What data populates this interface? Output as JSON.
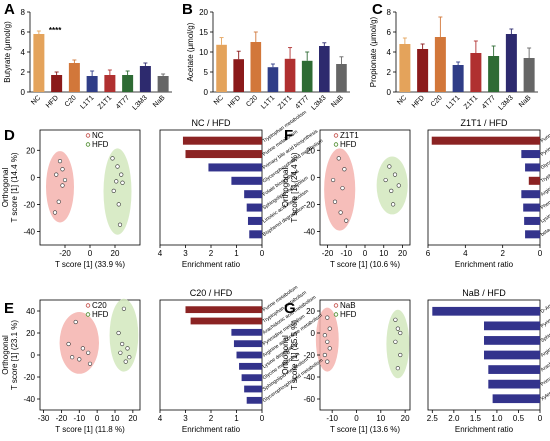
{
  "groups": [
    "NC",
    "HFD",
    "C20",
    "L1T1",
    "Z1T1",
    "4T77",
    "L3M3",
    "NaB"
  ],
  "colors": {
    "NC": "#e4a35b",
    "HFD": "#8b1a1a",
    "C20": "#d2773a",
    "L1T1": "#2f3d87",
    "Z1T1": "#b03030",
    "4T77": "#2e6b34",
    "L3M3": "#2d2a6e",
    "NaB": "#666666",
    "enrich_up": "#8b2323",
    "enrich_down": "#33338c",
    "pca_red": "#f4b3ae",
    "pca_green": "#d2e7bd"
  },
  "chart_data": [
    {
      "panel": "A",
      "type": "bar",
      "ylabel": "Butyrate (μmol/g)",
      "ylim": [
        0,
        8
      ],
      "yticks": [
        0,
        2,
        4,
        6,
        8
      ],
      "categories": [
        "NC",
        "HFD",
        "C20",
        "L1T1",
        "Z1T1",
        "4T77",
        "L3M3",
        "NaB"
      ],
      "values": [
        5.8,
        1.7,
        2.9,
        1.6,
        1.7,
        1.7,
        2.6,
        1.6
      ],
      "errors": [
        0.3,
        0.3,
        0.3,
        0.5,
        0.5,
        0.4,
        0.3,
        0.2
      ],
      "annotation": "****"
    },
    {
      "panel": "B",
      "type": "bar",
      "ylabel": "Acetate (μmol/g)",
      "ylim": [
        0,
        20
      ],
      "yticks": [
        0,
        5,
        10,
        15,
        20
      ],
      "categories": [
        "NC",
        "HFD",
        "C20",
        "L1T1",
        "Z1T1",
        "4T77",
        "L3M3",
        "NaB"
      ],
      "values": [
        11.8,
        8.2,
        12.5,
        6.2,
        8.3,
        7.8,
        11.5,
        7.0
      ],
      "errors": [
        1.8,
        2.0,
        2.5,
        0.8,
        2.8,
        2.2,
        0.8,
        1.8
      ]
    },
    {
      "panel": "C",
      "type": "bar",
      "ylabel": "Propionate (μmol/g)",
      "ylim": [
        0,
        8
      ],
      "yticks": [
        0,
        2,
        4,
        6,
        8
      ],
      "categories": [
        "NC",
        "HFD",
        "C20",
        "L1T1",
        "Z1T1",
        "4T77",
        "L3M3",
        "NaB"
      ],
      "values": [
        4.8,
        4.3,
        5.5,
        2.7,
        3.9,
        3.6,
        5.8,
        3.4
      ],
      "errors": [
        0.6,
        0.5,
        2.0,
        0.3,
        1.2,
        1.0,
        0.5,
        1.0
      ]
    },
    {
      "panel": "D",
      "type": "scatter",
      "legend": [
        "NC",
        "HFD"
      ],
      "xlabel": "T score [1] (33.9 %)",
      "ylabel": "Orthogonal\nT score [1] (14.4 %)",
      "xticks": [
        -20,
        0,
        20
      ],
      "yticks": [
        20,
        0,
        -20,
        -40
      ],
      "xlim": [
        -40,
        40
      ],
      "ylim": [
        -50,
        35
      ],
      "series": [
        {
          "name": "NC",
          "points": [
            [
              -24,
              12
            ],
            [
              -22,
              6
            ],
            [
              -27,
              2
            ],
            [
              -20,
              -2
            ],
            [
              -22,
              -6
            ],
            [
              -25,
              -18
            ],
            [
              -28,
              -26
            ]
          ]
        },
        {
          "name": "HFD",
          "points": [
            [
              18,
              14
            ],
            [
              22,
              8
            ],
            [
              25,
              2
            ],
            [
              21,
              -3
            ],
            [
              26,
              -4
            ],
            [
              19,
              -10
            ],
            [
              23,
              -20
            ],
            [
              24,
              -35
            ]
          ]
        }
      ]
    },
    {
      "panel": "D2",
      "type": "bar-horizontal",
      "title": "NC / HFD",
      "xlabel": "Enrichment ratio",
      "xticks": [
        "4",
        "3",
        "2",
        "1",
        "0"
      ],
      "xlim": [
        4,
        0
      ],
      "categories": [
        "Tryptophan metabolism",
        "Purine metabolism",
        "Primary bile acid biosynthesis",
        "Glycerophospholipid metabolism",
        "Folate biosynthesis",
        "Sphingolipid metabolism",
        "Linoleic acid metabolism",
        "Bisphenol degradation"
      ],
      "values": [
        3.1,
        3.0,
        2.1,
        1.2,
        0.7,
        0.6,
        0.55,
        0.5
      ],
      "direction": [
        "up",
        "up",
        "down",
        "down",
        "down",
        "down",
        "down",
        "down"
      ]
    },
    {
      "panel": "F",
      "type": "scatter",
      "legend": [
        "Z1T1",
        "HFD"
      ],
      "xlabel": "T score [1] (10.6 %)",
      "ylabel": "Orthogonal\nT score [1] (24.4 %)",
      "xticks": [
        -20,
        -10,
        0,
        10,
        20
      ],
      "yticks": [
        20,
        0,
        -20,
        -40
      ],
      "xlim": [
        -24,
        24
      ],
      "ylim": [
        -50,
        35
      ],
      "series": [
        {
          "name": "Z1T1",
          "points": [
            [
              -14,
              14
            ],
            [
              -11,
              6
            ],
            [
              -17,
              -2
            ],
            [
              -12,
              -8
            ],
            [
              -16,
              -18
            ],
            [
              -13,
              -26
            ],
            [
              -10,
              -32
            ]
          ]
        },
        {
          "name": "HFD",
          "points": [
            [
              13,
              8
            ],
            [
              16,
              2
            ],
            [
              11,
              -2
            ],
            [
              18,
              -6
            ],
            [
              14,
              -10
            ],
            [
              15,
              -20
            ]
          ]
        }
      ]
    },
    {
      "panel": "F2",
      "type": "bar-horizontal",
      "title": "Z1T1 / HFD",
      "xlabel": "Enrichment ratio",
      "xticks": [
        "6",
        "4",
        "2",
        "0"
      ],
      "xlim": [
        6,
        0
      ],
      "categories": [
        "Purine metabolism",
        "Pyrimidine metabolism",
        "Glycerophospholipid metabolism",
        "Tryptophan metabolism",
        "Arginine biosynthesis",
        "Phenylalanine metabolism",
        "Lysine degradation",
        "beta-Alanine metabolism"
      ],
      "values": [
        5.8,
        1.0,
        0.8,
        0.6,
        1.0,
        0.9,
        0.85,
        0.8
      ],
      "direction": [
        "up",
        "down",
        "down",
        "up",
        "down",
        "down",
        "down",
        "down"
      ]
    },
    {
      "panel": "E",
      "type": "scatter",
      "legend": [
        "C20",
        "HFD"
      ],
      "xlabel": "T score [1] (11.8 %)",
      "ylabel": "Orthogonal\nT score [1] (23.1 %)",
      "xticks": [
        -30,
        -20,
        -10,
        0,
        10,
        20
      ],
      "yticks": [
        40,
        20,
        0,
        -20,
        -40
      ],
      "xlim": [
        -32,
        24
      ],
      "ylim": [
        -50,
        50
      ],
      "series": [
        {
          "name": "C20",
          "points": [
            [
              -12,
              30
            ],
            [
              -16,
              10
            ],
            [
              -8,
              6
            ],
            [
              -5,
              2
            ],
            [
              -14,
              -2
            ],
            [
              -10,
              -4
            ],
            [
              -4,
              -8
            ]
          ]
        },
        {
          "name": "HFD",
          "points": [
            [
              15,
              42
            ],
            [
              12,
              20
            ],
            [
              14,
              10
            ],
            [
              17,
              6
            ],
            [
              13,
              2
            ],
            [
              18,
              -2
            ],
            [
              16,
              -6
            ]
          ]
        }
      ]
    },
    {
      "panel": "E2",
      "type": "bar-horizontal",
      "title": "C20 / HFD",
      "xlabel": "Enrichment ratio",
      "xticks": [
        "4",
        "3",
        "2",
        "1",
        "0"
      ],
      "xlim": [
        4,
        0
      ],
      "categories": [
        "Purine metabolism",
        "Tryptophan metabolism",
        "Arachidonic acid metabolism",
        "Pyrimidine metabolism",
        "Arginine and proline metabolism",
        "Lysine degradation",
        "Glycine metabolism",
        "Sphingolipid metabolism",
        "Glycerophospholipid metabolism"
      ],
      "values": [
        3.0,
        2.8,
        1.2,
        1.1,
        1.0,
        0.9,
        0.8,
        0.7,
        0.6
      ],
      "direction": [
        "up",
        "up",
        "down",
        "down",
        "down",
        "down",
        "down",
        "down",
        "down"
      ]
    },
    {
      "panel": "G",
      "type": "scatter",
      "legend": [
        "NaB",
        "HFD"
      ],
      "xlabel": "T score [1] (13.6 %)",
      "ylabel": "Orthogonal\nT score [1] (25.5 %)",
      "xticks": [
        -10,
        0,
        10,
        20
      ],
      "yticks": [
        20,
        0,
        -20,
        -40,
        -60
      ],
      "xlim": [
        -15,
        22
      ],
      "ylim": [
        -70,
        30
      ],
      "series": [
        {
          "name": "NaB",
          "points": [
            [
              -12,
              14
            ],
            [
              -11,
              4
            ],
            [
              -13,
              -2
            ],
            [
              -12,
              -8
            ],
            [
              -11,
              -14
            ],
            [
              -13,
              -20
            ],
            [
              -12,
              -26
            ]
          ]
        },
        {
          "name": "HFD",
          "points": [
            [
              16,
              12
            ],
            [
              17,
              4
            ],
            [
              18,
              0
            ],
            [
              16,
              -8
            ],
            [
              18,
              -20
            ],
            [
              17,
              -32
            ]
          ]
        }
      ]
    },
    {
      "panel": "G2",
      "type": "bar-horizontal",
      "title": "NaB / HFD",
      "xlabel": "Enrichment ratio",
      "xticks": [
        "2.5",
        "2.0",
        "1.5",
        "1.0",
        "0.5",
        "0"
      ],
      "xlim": [
        2.6,
        0
      ],
      "categories": [
        "D-Arginine and D-ornithine metabolism",
        "Pyrimidine metabolism",
        "Sphingolipid metabolism",
        "Arginine biosynthesis",
        "Arachidonic acid metabolism",
        "Primary bile acid biosynthesis",
        "Xylene degradation"
      ],
      "values": [
        2.5,
        1.3,
        1.3,
        1.3,
        1.2,
        1.2,
        1.1
      ],
      "direction": [
        "down",
        "down",
        "down",
        "down",
        "down",
        "down",
        "down"
      ]
    }
  ],
  "panel_labels": {
    "A": "A",
    "B": "B",
    "C": "C",
    "D": "D",
    "E": "E",
    "F": "F",
    "G": "G"
  }
}
